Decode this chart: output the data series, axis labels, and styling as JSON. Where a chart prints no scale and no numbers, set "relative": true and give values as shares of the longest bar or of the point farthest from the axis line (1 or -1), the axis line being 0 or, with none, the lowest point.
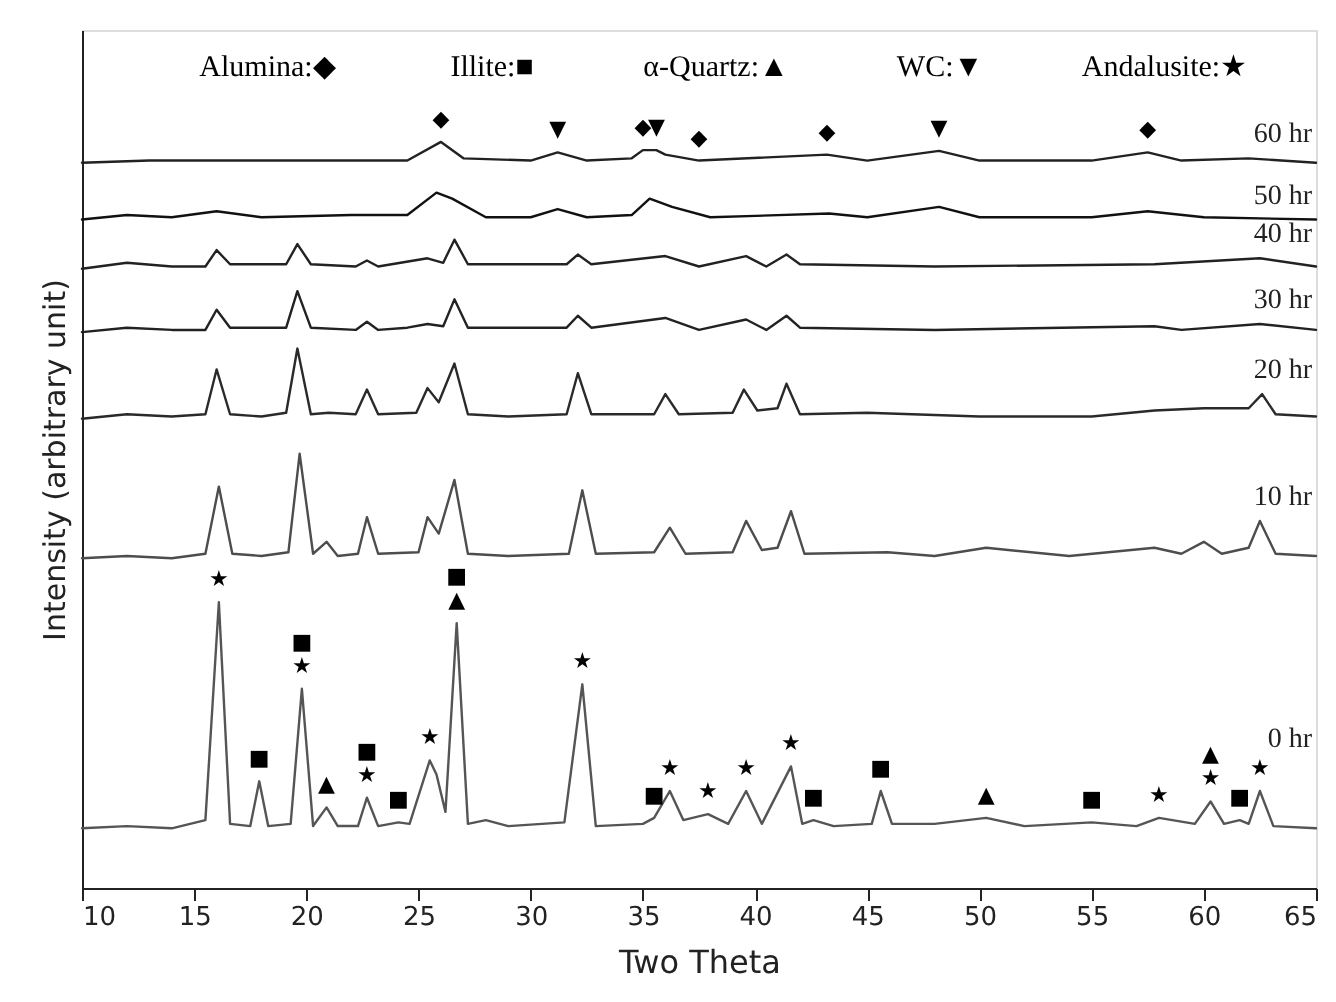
{
  "chart_data": {
    "type": "line",
    "relative": true,
    "xlabel": "Two Theta",
    "ylabel": "Intensity (arbitrary unit)",
    "xlim": [
      10,
      65
    ],
    "xticks": [
      10,
      15,
      20,
      25,
      30,
      35,
      40,
      45,
      50,
      55,
      60,
      65
    ],
    "series": [
      {
        "name": "60 hr",
        "color": "#222222",
        "x": [
          10,
          13,
          16,
          20,
          24.5,
          26,
          27,
          30,
          31.2,
          32.5,
          34.5,
          35.0,
          35.6,
          36,
          37.5,
          43.2,
          45,
          48.2,
          50,
          55,
          57.5,
          59,
          62,
          65
        ],
        "values": [
          0.972,
          0.975,
          0.975,
          0.975,
          0.975,
          1.0,
          0.978,
          0.975,
          0.986,
          0.975,
          0.978,
          0.989,
          0.989,
          0.983,
          0.975,
          0.983,
          0.975,
          0.988,
          0.975,
          0.975,
          0.986,
          0.975,
          0.978,
          0.972
        ]
      },
      {
        "name": "50 hr",
        "color": "#111111",
        "x": [
          10,
          12,
          14,
          16,
          18,
          22,
          24.5,
          25.8,
          26.5,
          28,
          30,
          31.2,
          32.5,
          34.5,
          35.3,
          36.3,
          38,
          43.3,
          45,
          48.2,
          50,
          55,
          57.5,
          60,
          65
        ],
        "values": [
          0.896,
          0.902,
          0.899,
          0.907,
          0.899,
          0.902,
          0.902,
          0.932,
          0.924,
          0.899,
          0.899,
          0.91,
          0.899,
          0.902,
          0.924,
          0.913,
          0.899,
          0.904,
          0.899,
          0.913,
          0.899,
          0.899,
          0.907,
          0.899,
          0.896
        ]
      },
      {
        "name": "40 hr",
        "color": "#222222",
        "x": [
          10,
          12,
          14,
          15.5,
          16,
          16.6,
          19.1,
          19.6,
          20.2,
          22.2,
          22.7,
          23.2,
          25.4,
          26.1,
          26.6,
          27.2,
          31.6,
          32.1,
          32.7,
          36,
          37.5,
          39.6,
          40.5,
          41.4,
          42,
          48,
          57.8,
          62.5,
          65
        ],
        "values": [
          0.83,
          0.838,
          0.833,
          0.833,
          0.855,
          0.836,
          0.836,
          0.863,
          0.836,
          0.833,
          0.841,
          0.833,
          0.844,
          0.838,
          0.869,
          0.836,
          0.836,
          0.849,
          0.836,
          0.847,
          0.833,
          0.847,
          0.833,
          0.849,
          0.836,
          0.833,
          0.836,
          0.844,
          0.833
        ]
      },
      {
        "name": "30 hr",
        "color": "#222222",
        "x": [
          10,
          12,
          14,
          15.5,
          16,
          16.6,
          19.1,
          19.6,
          20.2,
          22.2,
          22.7,
          23.2,
          24.5,
          25.4,
          26.1,
          26.6,
          27.2,
          31.6,
          32.1,
          32.7,
          36,
          37.5,
          39.6,
          40.5,
          41.4,
          42,
          48,
          57.8,
          59,
          62.5,
          65
        ],
        "values": [
          0.745,
          0.751,
          0.748,
          0.748,
          0.775,
          0.751,
          0.751,
          0.8,
          0.751,
          0.748,
          0.759,
          0.748,
          0.751,
          0.756,
          0.753,
          0.789,
          0.751,
          0.751,
          0.767,
          0.751,
          0.764,
          0.748,
          0.762,
          0.748,
          0.767,
          0.751,
          0.748,
          0.753,
          0.748,
          0.756,
          0.748
        ]
      },
      {
        "name": "20 hr",
        "color": "#2a2a2a",
        "x": [
          10,
          12,
          14,
          15.5,
          16,
          16.6,
          18,
          19.1,
          19.6,
          20.2,
          21,
          22.2,
          22.7,
          23.2,
          24.9,
          25.4,
          25.9,
          26.6,
          27.2,
          29,
          31.6,
          32.1,
          32.7,
          35.5,
          36,
          36.6,
          39,
          39.5,
          40.1,
          41,
          41.4,
          42,
          45,
          50,
          55,
          57.8,
          60,
          62,
          62.6,
          63.2,
          65
        ],
        "values": [
          0.629,
          0.635,
          0.632,
          0.635,
          0.695,
          0.635,
          0.632,
          0.637,
          0.723,
          0.635,
          0.637,
          0.635,
          0.668,
          0.635,
          0.637,
          0.67,
          0.651,
          0.703,
          0.635,
          0.632,
          0.635,
          0.69,
          0.635,
          0.635,
          0.662,
          0.635,
          0.637,
          0.668,
          0.64,
          0.643,
          0.676,
          0.635,
          0.637,
          0.632,
          0.632,
          0.64,
          0.643,
          0.643,
          0.662,
          0.635,
          0.632
        ]
      },
      {
        "name": "10 hr",
        "color": "#4d4d4d",
        "x": [
          10,
          12,
          14,
          15.5,
          16.1,
          16.7,
          18,
          19.2,
          19.7,
          20.3,
          20.9,
          21.4,
          22.3,
          22.7,
          23.2,
          25,
          25.4,
          25.9,
          26.6,
          27.2,
          29,
          31.7,
          32.3,
          32.9,
          35.5,
          36.2,
          36.9,
          39,
          39.6,
          40.3,
          41,
          41.6,
          42.2,
          45.9,
          48,
          50.3,
          54,
          57.8,
          59,
          60,
          60.8,
          62,
          62.5,
          63.2,
          65
        ],
        "values": [
          0.442,
          0.445,
          0.442,
          0.448,
          0.538,
          0.448,
          0.445,
          0.45,
          0.582,
          0.448,
          0.464,
          0.445,
          0.448,
          0.497,
          0.448,
          0.45,
          0.497,
          0.475,
          0.547,
          0.448,
          0.445,
          0.448,
          0.533,
          0.448,
          0.45,
          0.483,
          0.448,
          0.45,
          0.492,
          0.453,
          0.456,
          0.505,
          0.448,
          0.45,
          0.445,
          0.456,
          0.445,
          0.456,
          0.448,
          0.464,
          0.448,
          0.456,
          0.492,
          0.448,
          0.445
        ]
      },
      {
        "name": "0 hr",
        "color": "#555555",
        "x": [
          10,
          12,
          14,
          15.5,
          16.1,
          16.6,
          17.5,
          17.9,
          18.3,
          19.3,
          19.8,
          20.3,
          20.9,
          21.4,
          22.3,
          22.7,
          23.2,
          24.1,
          24.6,
          25.5,
          25.8,
          26.2,
          26.7,
          27.2,
          28,
          29,
          31.5,
          32.3,
          32.9,
          35,
          35.5,
          36.2,
          36.8,
          37.9,
          38.8,
          39.6,
          40.3,
          41.6,
          42.1,
          42.6,
          43.5,
          45.2,
          45.6,
          46.1,
          48,
          50.3,
          52,
          55,
          57,
          58,
          59.6,
          60.3,
          60.9,
          61.6,
          62,
          62.5,
          63.1,
          65
        ],
        "values": [
          0.08,
          0.083,
          0.08,
          0.091,
          0.383,
          0.086,
          0.083,
          0.143,
          0.083,
          0.086,
          0.267,
          0.083,
          0.108,
          0.083,
          0.083,
          0.121,
          0.083,
          0.088,
          0.086,
          0.171,
          0.152,
          0.102,
          0.355,
          0.086,
          0.091,
          0.083,
          0.088,
          0.273,
          0.083,
          0.086,
          0.094,
          0.13,
          0.091,
          0.099,
          0.086,
          0.13,
          0.086,
          0.163,
          0.086,
          0.091,
          0.083,
          0.086,
          0.13,
          0.086,
          0.086,
          0.094,
          0.083,
          0.088,
          0.083,
          0.094,
          0.086,
          0.116,
          0.086,
          0.091,
          0.086,
          0.13,
          0.083,
          0.08
        ]
      }
    ],
    "annotations": [
      "Alumina:◆",
      "Illite:■",
      "α-Quartz:▲",
      "WC:▼",
      "Andalusite:★",
      {
        "text": "◆",
        "x": 26,
        "y": 1.0
      },
      {
        "text": "▼",
        "x": 31.2,
        "y": 0.986
      },
      {
        "text": "◆",
        "x": 35.0,
        "y": 0.989
      },
      {
        "text": "▼",
        "x": 35.6,
        "y": 0.989
      },
      {
        "text": "◆",
        "x": 37.5,
        "y": 0.975
      },
      {
        "text": "◆",
        "x": 43.2,
        "y": 0.983
      },
      {
        "text": "▼",
        "x": 48.2,
        "y": 0.988
      },
      {
        "text": "◆",
        "x": 57.5,
        "y": 0.986
      },
      {
        "text": "★",
        "x": 16.1,
        "y": 0.383
      },
      {
        "text": "■",
        "x": 17.9,
        "y": 0.143
      },
      {
        "text": "★",
        "x": 19.8,
        "y": 0.267
      },
      {
        "text": "■",
        "x": 19.8,
        "y": 0.267
      },
      {
        "text": "▲",
        "x": 20.9,
        "y": 0.108
      },
      {
        "text": "★",
        "x": 22.7,
        "y": 0.121
      },
      {
        "text": "■",
        "x": 22.7,
        "y": 0.121
      },
      {
        "text": "■",
        "x": 24.1,
        "y": 0.088
      },
      {
        "text": "★",
        "x": 25.5,
        "y": 0.171
      },
      {
        "text": "▲",
        "x": 26.7,
        "y": 0.355
      },
      {
        "text": "■",
        "x": 26.7,
        "y": 0.355
      },
      {
        "text": "★",
        "x": 32.3,
        "y": 0.273
      },
      {
        "text": "■",
        "x": 35.5,
        "y": 0.094
      },
      {
        "text": "★",
        "x": 36.2,
        "y": 0.13
      },
      {
        "text": "★",
        "x": 37.9,
        "y": 0.099
      },
      {
        "text": "★",
        "x": 39.6,
        "y": 0.13
      },
      {
        "text": "★",
        "x": 41.6,
        "y": 0.163
      },
      {
        "text": "■",
        "x": 42.6,
        "y": 0.091
      },
      {
        "text": "■",
        "x": 45.6,
        "y": 0.13
      },
      {
        "text": "▲",
        "x": 50.3,
        "y": 0.094
      },
      {
        "text": "■",
        "x": 55.0,
        "y": 0.088
      },
      {
        "text": "★",
        "x": 58.0,
        "y": 0.094
      },
      {
        "text": "★",
        "x": 60.3,
        "y": 0.116
      },
      {
        "text": "▲",
        "x": 60.3,
        "y": 0.116
      },
      {
        "text": "■",
        "x": 61.6,
        "y": 0.091
      },
      {
        "text": "★",
        "x": 62.5,
        "y": 0.13
      }
    ]
  }
}
